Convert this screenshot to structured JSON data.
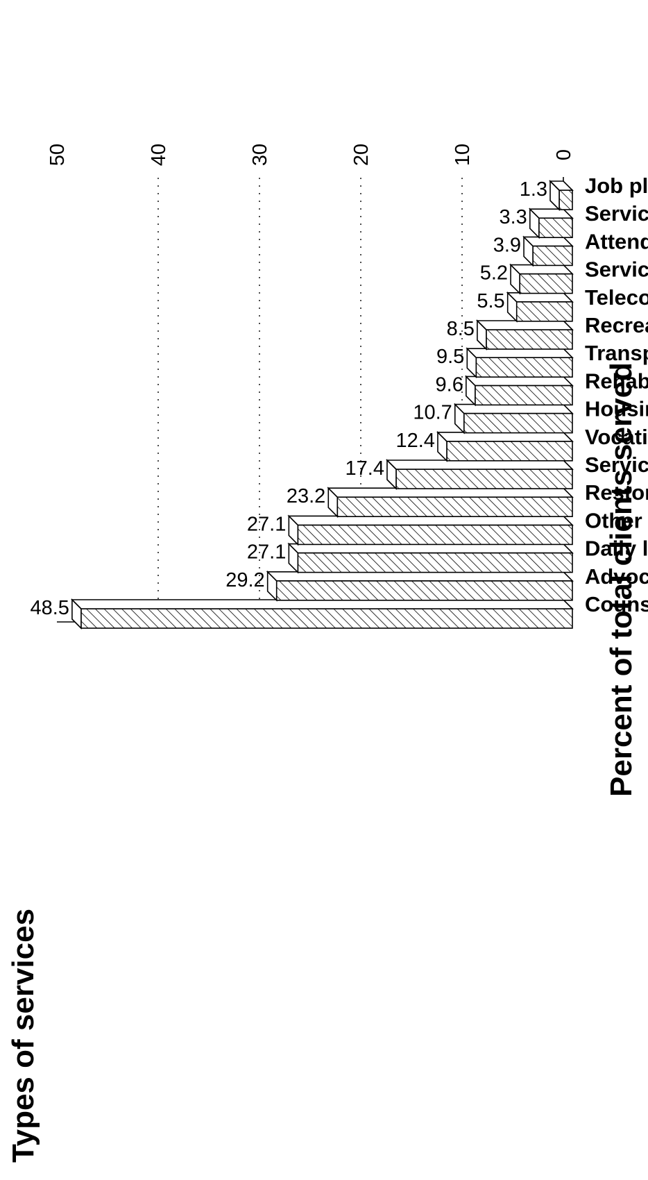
{
  "chart_data": {
    "type": "bar",
    "orientation": "horizontal",
    "style": "3d hatched bars",
    "xlabel": "Percent of total clients served",
    "ylabel": "Types of services",
    "xlim": [
      0,
      50
    ],
    "ticks": [
      "0",
      "10",
      "20",
      "30",
      "40",
      "50"
    ],
    "grid": "dotted vertical",
    "categories": [
      "Counseling",
      "Advocacy/referral",
      "Daily living",
      "Other services",
      "Restoration",
      "Services for the blind",
      "Vocational/training",
      "Housing assistance",
      "Rehab egineering",
      "Transportation",
      "Recreational",
      "Telecommunications",
      "Services to family",
      "Attendant care",
      "Services for deaf",
      "Job placement"
    ],
    "values": [
      48.5,
      29.2,
      27.1,
      27.1,
      23.2,
      17.4,
      12.4,
      10.7,
      9.6,
      9.5,
      8.5,
      5.5,
      5.2,
      3.9,
      3.3,
      1.3
    ],
    "value_labels": [
      "48.5",
      "29.2",
      "27.1",
      "27.1",
      "23.2",
      "17.4",
      "12.4",
      "10.7",
      "9.6",
      "9.5",
      "8.5",
      "5.5",
      "5.2",
      "3.9",
      "3.3",
      "1.3"
    ],
    "colors": {
      "bar_face": "#ffffff",
      "hatch": "#000000",
      "grid": "#000000"
    }
  }
}
